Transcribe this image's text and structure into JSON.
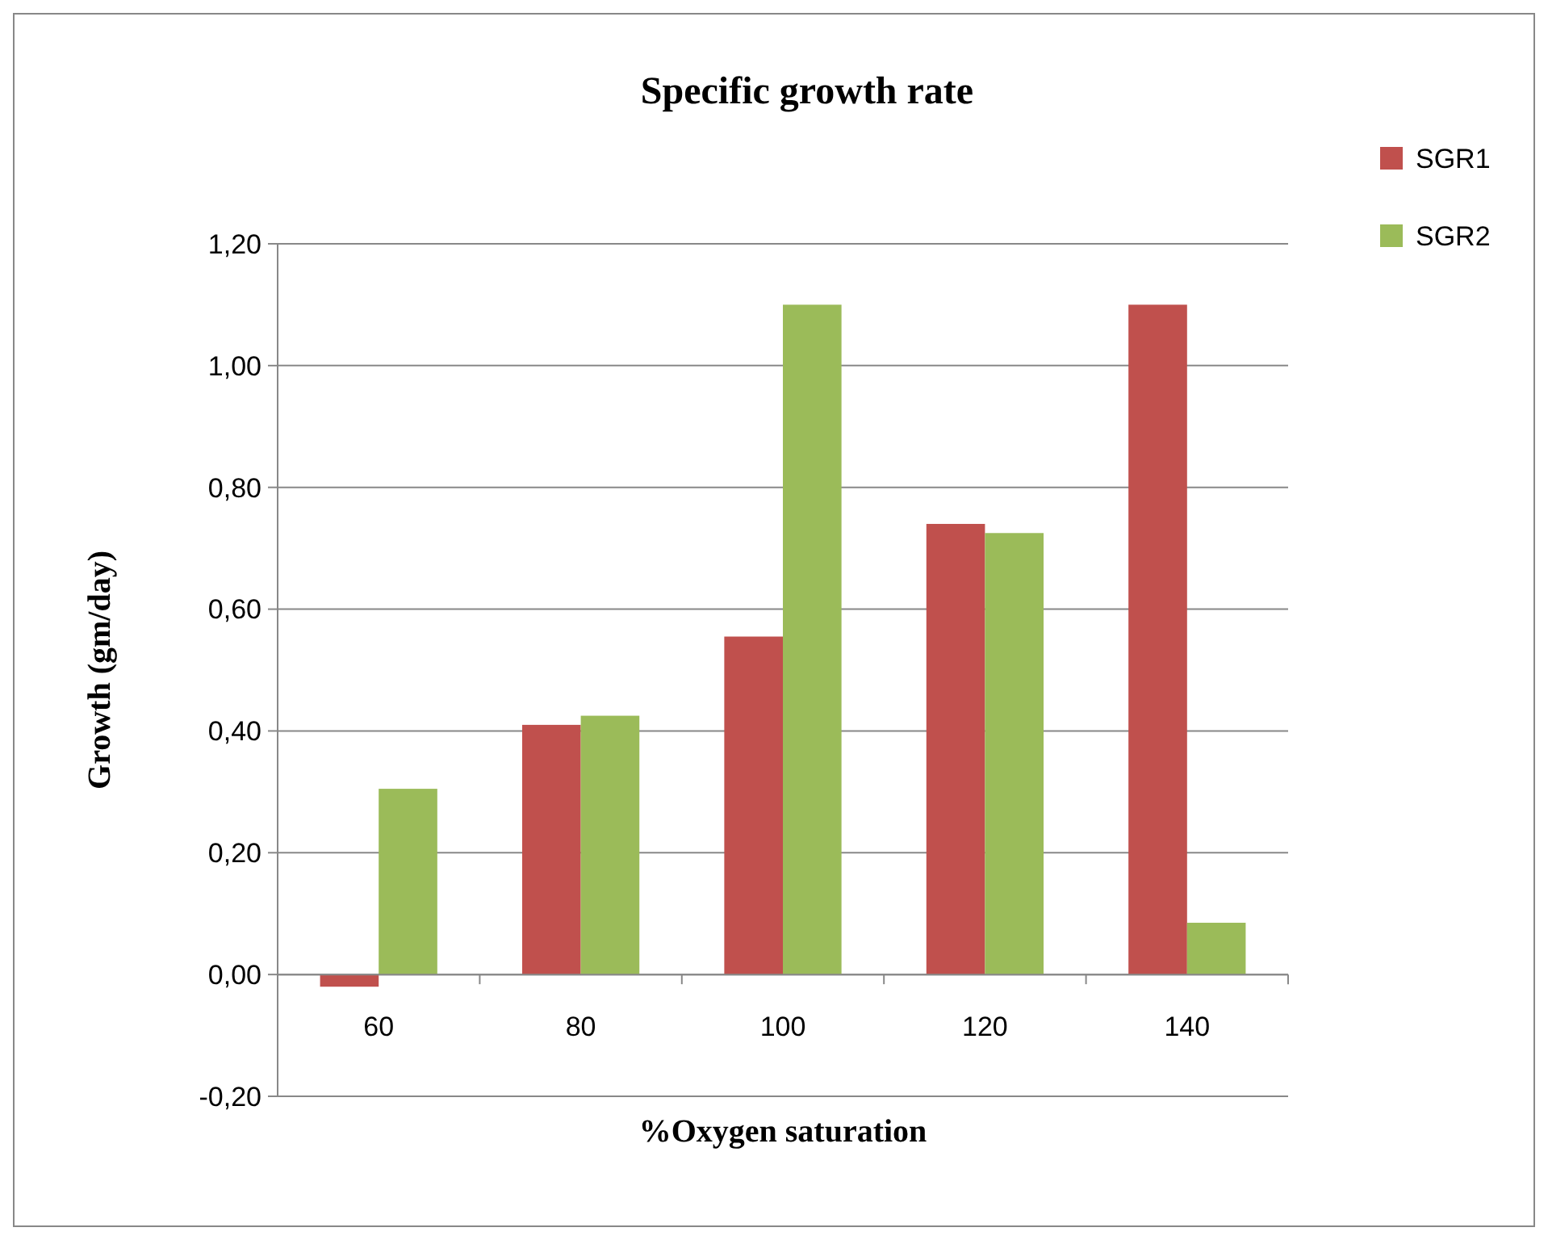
{
  "chart_data": {
    "type": "bar",
    "title": "Specific growth rate",
    "xlabel": "%Oxygen saturation",
    "ylabel": "Growth (gm/day)",
    "categories": [
      "60",
      "80",
      "100",
      "120",
      "140"
    ],
    "series": [
      {
        "name": "SGR1",
        "color": "#c0504d",
        "values": [
          -0.02,
          0.41,
          0.555,
          0.74,
          1.1
        ]
      },
      {
        "name": "SGR2",
        "color": "#9bbb59",
        "values": [
          0.305,
          0.425,
          1.1,
          0.725,
          0.085
        ]
      }
    ],
    "ylim": [
      -0.2,
      1.2
    ],
    "yticks": [
      {
        "value": -0.2,
        "label": "-0,20"
      },
      {
        "value": 0,
        "label": "0,00"
      },
      {
        "value": 0.2,
        "label": "0,20"
      },
      {
        "value": 0.4,
        "label": "0,40"
      },
      {
        "value": 0.6,
        "label": "0,60"
      },
      {
        "value": 0.8,
        "label": "0,80"
      },
      {
        "value": 1,
        "label": "1,00"
      },
      {
        "value": 1.2,
        "label": "1,20"
      }
    ],
    "grid": "y",
    "legend": "right"
  }
}
